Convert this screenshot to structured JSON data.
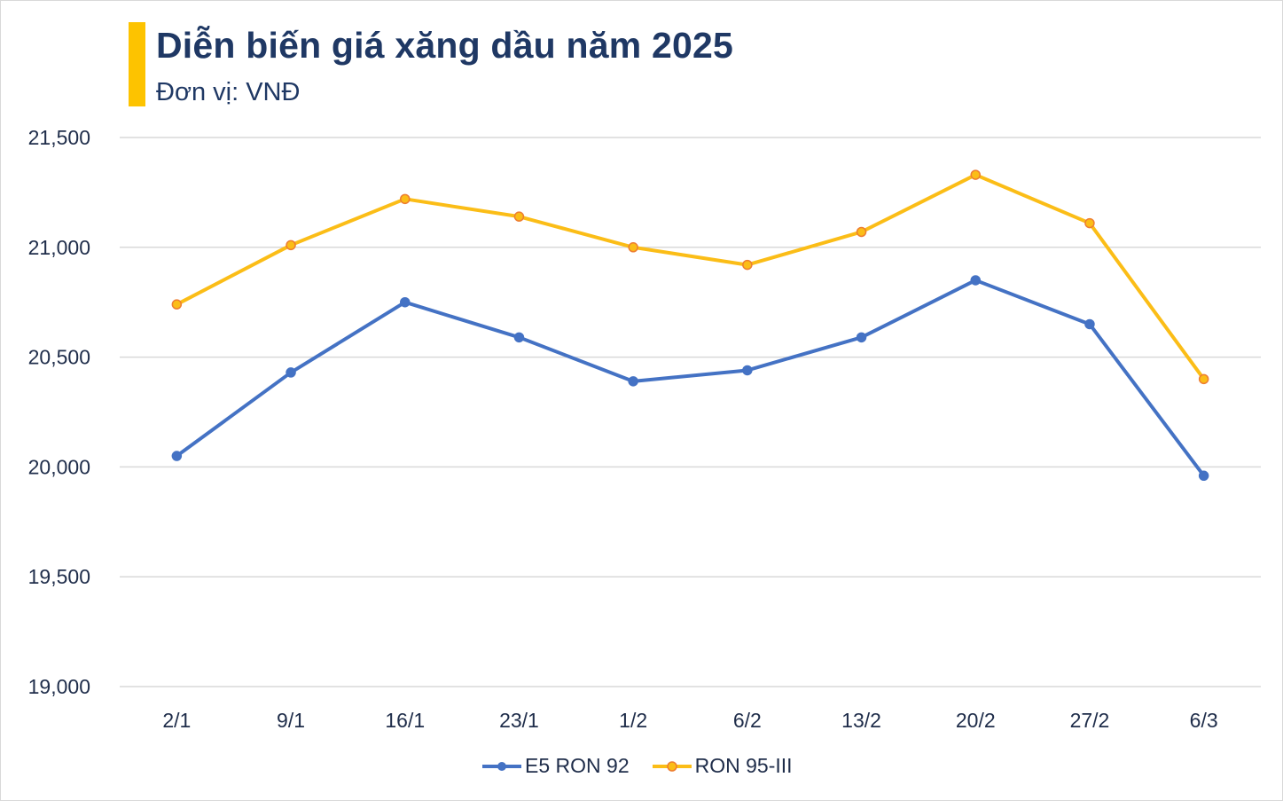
{
  "header": {
    "title": "Diễn biến giá xăng dầu năm 2025",
    "subtitle": "Đơn vị: VNĐ"
  },
  "colors": {
    "accent_bar": "#fdc300",
    "title_text": "#1f3864",
    "e5_line": "#4472c4",
    "ron95_line": "#fbbd17",
    "ron95_marker_border": "#ed7d31",
    "gridline": "#d9d9d9"
  },
  "legend": {
    "items": [
      {
        "label": "E5 RON 92",
        "color": "#4472c4",
        "marker": "filled-circle"
      },
      {
        "label": "RON 95-III",
        "color": "#fbbd17",
        "marker": "orange-outlined-circle"
      }
    ]
  },
  "chart_data": {
    "type": "line",
    "title": "Diễn biến giá xăng dầu năm 2025",
    "subtitle": "Đơn vị: VNĐ",
    "xlabel": "",
    "ylabel": "",
    "categories": [
      "2/1",
      "9/1",
      "16/1",
      "23/1",
      "1/2",
      "6/2",
      "13/2",
      "20/2",
      "27/2",
      "6/3"
    ],
    "series": [
      {
        "name": "E5 RON 92",
        "values": [
          20050,
          20430,
          20750,
          20590,
          20390,
          20440,
          20590,
          20850,
          20650,
          19960
        ]
      },
      {
        "name": "RON 95-III",
        "values": [
          20740,
          21010,
          21220,
          21140,
          21000,
          20920,
          21070,
          21330,
          21110,
          20400
        ]
      }
    ],
    "ylim": [
      19000,
      21500
    ],
    "yticks": [
      19000,
      19500,
      20000,
      20500,
      21000,
      21500
    ],
    "ytick_labels": [
      "19,000",
      "19,500",
      "20,000",
      "20,500",
      "21,000",
      "21,500"
    ],
    "grid": "horizontal",
    "legend_position": "bottom"
  }
}
